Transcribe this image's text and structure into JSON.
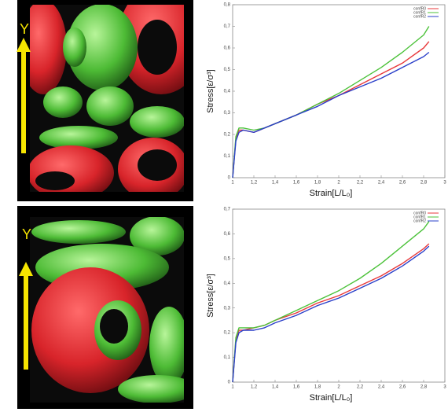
{
  "images": [
    {
      "axis_label": "Y"
    },
    {
      "axis_label": "Y"
    }
  ],
  "chart_data": [
    {
      "type": "line",
      "xlabel": "Strain[L/L₀]",
      "ylabel": "Stress[ε/σ³]",
      "x": [
        1,
        1.03,
        1.06,
        1.1,
        1.2,
        1.3,
        1.4,
        1.6,
        1.8,
        2.0,
        2.2,
        2.4,
        2.6,
        2.8,
        2.85
      ],
      "series": [
        {
          "name": "confR0",
          "color": "#e8393b",
          "values": [
            0,
            0.18,
            0.22,
            0.22,
            0.21,
            0.23,
            0.25,
            0.29,
            0.34,
            0.38,
            0.43,
            0.48,
            0.53,
            0.6,
            0.63
          ]
        },
        {
          "name": "confR1",
          "color": "#4cc23a",
          "values": [
            0,
            0.19,
            0.23,
            0.23,
            0.22,
            0.23,
            0.25,
            0.29,
            0.34,
            0.39,
            0.45,
            0.51,
            0.58,
            0.66,
            0.7
          ]
        },
        {
          "name": "confR2",
          "color": "#2a3fc9",
          "values": [
            0,
            0.17,
            0.21,
            0.22,
            0.21,
            0.23,
            0.25,
            0.29,
            0.33,
            0.38,
            0.42,
            0.46,
            0.51,
            0.56,
            0.58
          ]
        }
      ],
      "xlim": [
        1,
        3
      ],
      "xticks": [
        1,
        {
          "value": 1.2,
          "label": "1,2"
        },
        {
          "value": 1.4,
          "label": "1,4"
        },
        {
          "value": 1.6,
          "label": "1,6"
        },
        {
          "value": 1.8,
          "label": "1,8"
        },
        2,
        {
          "value": 2.2,
          "label": "2,2"
        },
        {
          "value": 2.4,
          "label": "2,4"
        },
        {
          "value": 2.6,
          "label": "2,6"
        },
        {
          "value": 2.8,
          "label": "2,8"
        },
        3
      ],
      "ylim": [
        0,
        0.8
      ],
      "yticks": [
        0,
        {
          "value": 0.1,
          "label": "0,1"
        },
        {
          "value": 0.2,
          "label": "0,2"
        },
        {
          "value": 0.3,
          "label": "0,3"
        },
        {
          "value": 0.4,
          "label": "0,4"
        },
        {
          "value": 0.5,
          "label": "0,5"
        },
        {
          "value": 0.6,
          "label": "0,6"
        },
        {
          "value": 0.7,
          "label": "0,7"
        },
        {
          "value": 0.8,
          "label": "0,8"
        }
      ],
      "legend": "upper right"
    },
    {
      "type": "line",
      "xlabel": "Strain[L/L₀]",
      "ylabel": "Stress[ε/σ³]",
      "x": [
        1,
        1.03,
        1.06,
        1.1,
        1.2,
        1.3,
        1.4,
        1.6,
        1.8,
        2.0,
        2.2,
        2.4,
        2.6,
        2.8,
        2.85
      ],
      "series": [
        {
          "name": "confR0",
          "color": "#e8393b",
          "values": [
            0,
            0.17,
            0.21,
            0.21,
            0.22,
            0.23,
            0.25,
            0.28,
            0.32,
            0.35,
            0.39,
            0.43,
            0.48,
            0.54,
            0.56
          ]
        },
        {
          "name": "confR1",
          "color": "#4cc23a",
          "values": [
            0,
            0.18,
            0.22,
            0.22,
            0.22,
            0.23,
            0.25,
            0.29,
            0.33,
            0.37,
            0.42,
            0.48,
            0.55,
            0.62,
            0.65
          ]
        },
        {
          "name": "confR2",
          "color": "#2a3fc9",
          "values": [
            0,
            0.16,
            0.2,
            0.21,
            0.21,
            0.22,
            0.24,
            0.27,
            0.31,
            0.34,
            0.38,
            0.42,
            0.47,
            0.53,
            0.55
          ]
        }
      ],
      "xlim": [
        1,
        3
      ],
      "xticks": [
        1,
        {
          "value": 1.2,
          "label": "1,2"
        },
        {
          "value": 1.4,
          "label": "1,4"
        },
        {
          "value": 1.6,
          "label": "1,6"
        },
        {
          "value": 1.8,
          "label": "1,8"
        },
        2,
        {
          "value": 2.2,
          "label": "2,2"
        },
        {
          "value": 2.4,
          "label": "2,4"
        },
        {
          "value": 2.6,
          "label": "2,6"
        },
        {
          "value": 2.8,
          "label": "2,8"
        },
        3
      ],
      "ylim": [
        0,
        0.7
      ],
      "yticks": [
        0,
        {
          "value": 0.1,
          "label": "0,1"
        },
        {
          "value": 0.2,
          "label": "0,2"
        },
        {
          "value": 0.3,
          "label": "0,3"
        },
        {
          "value": 0.4,
          "label": "0,4"
        },
        {
          "value": 0.5,
          "label": "0,5"
        },
        {
          "value": 0.6,
          "label": "0,6"
        },
        {
          "value": 0.7,
          "label": "0,7"
        }
      ],
      "legend": "upper right"
    }
  ]
}
